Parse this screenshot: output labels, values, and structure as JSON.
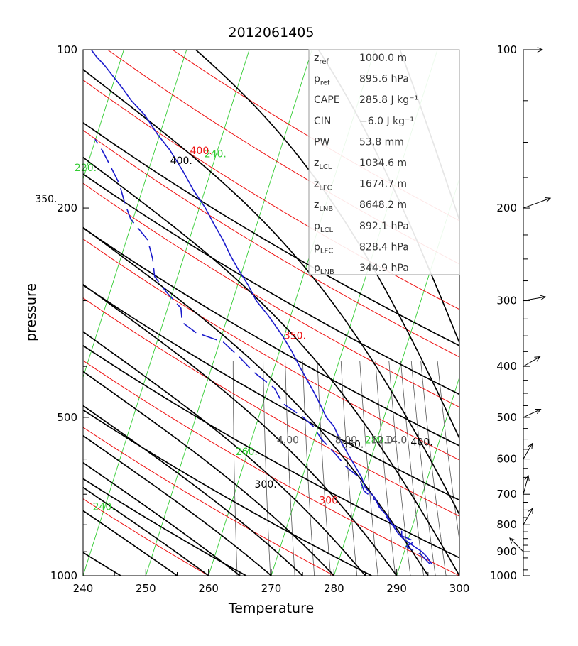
{
  "chart_data": {
    "type": "skew-t",
    "title": "2012061405",
    "xlabel": "Temperature",
    "ylabel": "pressure",
    "xlim": [
      240,
      300
    ],
    "ylim": [
      1000,
      100
    ],
    "x_ticks": [
      "240",
      "250",
      "260",
      "270",
      "280",
      "290",
      "300"
    ],
    "y_ticks": [
      {
        "p": 100,
        "label": "100"
      },
      {
        "p": 200,
        "label": "200"
      },
      {
        "p": 500,
        "label": "500"
      },
      {
        "p": 1000,
        "label": "1000"
      }
    ],
    "isotherm_labels": [
      {
        "t": 240,
        "p": 750,
        "label": "240."
      },
      {
        "t": 260,
        "p": 590,
        "label": "260."
      },
      {
        "t": 280,
        "p": 560,
        "label": "280."
      },
      {
        "t": 220,
        "p": 170,
        "label": "220."
      },
      {
        "t": 240,
        "p": 160,
        "label": "240."
      }
    ],
    "dry_adiabats": [
      240,
      260,
      280,
      300,
      320,
      340,
      360,
      380,
      400,
      420,
      440
    ],
    "dry_adiabat_labels": [
      {
        "theta": 300,
        "p": 680,
        "label": "300."
      },
      {
        "theta": 350,
        "p": 195,
        "label": "350."
      },
      {
        "theta": 400,
        "p": 165,
        "label": "400."
      }
    ],
    "theta_e_labels": [
      {
        "theta": 300,
        "p": 730,
        "label": "300."
      },
      {
        "theta": 350,
        "p": 355,
        "label": "350."
      },
      {
        "theta": 400,
        "p": 158,
        "label": "400."
      }
    ],
    "moist_adiabat_labels": [
      {
        "theta": 350,
        "p": 545,
        "label": "350."
      },
      {
        "theta": 400,
        "p": 540,
        "label": "400."
      }
    ],
    "mixing_ratio_labels": [
      {
        "w": 4,
        "label": "4.00"
      },
      {
        "w": 8,
        "label": "8.00"
      },
      {
        "w": 12,
        "label": "12.0"
      },
      {
        "w": 14,
        "label": "14.0"
      }
    ],
    "temperature_profile": [
      [
        295.6,
        950
      ],
      [
        294.8,
        920
      ],
      [
        294.0,
        900
      ],
      [
        292.8,
        880
      ],
      [
        291.0,
        850
      ],
      [
        290.2,
        830
      ],
      [
        289.3,
        800
      ],
      [
        288.5,
        770
      ],
      [
        287.2,
        740
      ],
      [
        286.5,
        710
      ],
      [
        285.0,
        680
      ],
      [
        284.4,
        650
      ],
      [
        283.4,
        620
      ],
      [
        282.7,
        600
      ],
      [
        281.6,
        570
      ],
      [
        280.9,
        550
      ],
      [
        280.0,
        520
      ],
      [
        278.8,
        500
      ],
      [
        277.7,
        470
      ],
      [
        276.9,
        450
      ],
      [
        275.5,
        420
      ],
      [
        274.5,
        400
      ],
      [
        273.3,
        375
      ],
      [
        271.8,
        350
      ],
      [
        269.5,
        320
      ],
      [
        267.6,
        300
      ],
      [
        266.3,
        280
      ],
      [
        264.6,
        260
      ],
      [
        263.4,
        245
      ],
      [
        262.3,
        230
      ],
      [
        260.9,
        215
      ],
      [
        259.5,
        200
      ],
      [
        257.6,
        185
      ],
      [
        255.9,
        170
      ],
      [
        253.8,
        155
      ],
      [
        251.9,
        145
      ],
      [
        249.8,
        133
      ],
      [
        247.7,
        125
      ],
      [
        246.2,
        118
      ],
      [
        244.7,
        112
      ],
      [
        243.4,
        107
      ],
      [
        242.1,
        103
      ],
      [
        241.3,
        100
      ]
    ],
    "dewpoint_profile": [
      [
        295.3,
        950
      ],
      [
        293.8,
        910
      ],
      [
        291.5,
        880
      ],
      [
        292.9,
        860
      ],
      [
        290.8,
        840
      ],
      [
        290.8,
        820
      ],
      [
        289.3,
        800
      ],
      [
        287.9,
        760
      ],
      [
        286.7,
        720
      ],
      [
        284.8,
        690
      ],
      [
        284.0,
        650
      ],
      [
        281.9,
        620
      ],
      [
        280.4,
        590
      ],
      [
        278.0,
        550
      ],
      [
        276.7,
        520
      ],
      [
        275.1,
        500
      ],
      [
        271.8,
        470
      ],
      [
        270.5,
        440
      ],
      [
        267.2,
        410
      ],
      [
        265.0,
        385
      ],
      [
        262.4,
        360
      ],
      [
        258.0,
        345
      ],
      [
        255.8,
        330
      ],
      [
        255.6,
        310
      ],
      [
        253.4,
        290
      ],
      [
        251.4,
        270
      ],
      [
        251.1,
        250
      ],
      [
        250.3,
        230
      ],
      [
        247.6,
        210
      ],
      [
        246.6,
        195
      ],
      [
        245.8,
        180
      ],
      [
        244.2,
        165
      ],
      [
        243.0,
        155
      ],
      [
        241.9,
        148
      ]
    ],
    "wind_barbs": [
      {
        "p": 100,
        "label": "100",
        "dir": 270,
        "speed": 10
      },
      {
        "p": 200,
        "label": "200",
        "dir": 250,
        "speed": 25
      },
      {
        "p": 300,
        "label": "300",
        "dir": 260,
        "speed": 15
      },
      {
        "p": 400,
        "label": "400",
        "dir": 240,
        "speed": 10
      },
      {
        "p": 500,
        "label": "500",
        "dir": 245,
        "speed": 10
      },
      {
        "p": 600,
        "label": "600",
        "dir": 210,
        "speed": 8
      },
      {
        "p": 700,
        "label": "700",
        "dir": 195,
        "speed": 10
      },
      {
        "p": 800,
        "label": "800",
        "dir": 210,
        "speed": 10
      },
      {
        "p": 900,
        "label": "900",
        "dir": 135,
        "speed": 10
      },
      {
        "p": 1000,
        "label": "1000",
        "dir": 0,
        "speed": 0
      }
    ],
    "info_box": [
      {
        "symbol": "z",
        "sub": "ref",
        "value": "1000.0 m"
      },
      {
        "symbol": "p",
        "sub": "ref",
        "value": "895.6 hPa"
      },
      {
        "symbol": "CAPE",
        "sub": "",
        "value": "285.8 J kg⁻¹"
      },
      {
        "symbol": "CIN",
        "sub": "",
        "value": "−6.0 J kg⁻¹"
      },
      {
        "symbol": "PW",
        "sub": "",
        "value": "53.8 mm"
      },
      {
        "symbol": "z",
        "sub": "LCL",
        "value": "1034.6 m"
      },
      {
        "symbol": "z",
        "sub": "LFC",
        "value": "1674.7 m"
      },
      {
        "symbol": "z",
        "sub": "LNB",
        "value": "8648.2 m"
      },
      {
        "symbol": "p",
        "sub": "LCL",
        "value": "892.1 hPa"
      },
      {
        "symbol": "p",
        "sub": "LFC",
        "value": "828.4 hPa"
      },
      {
        "symbol": "p",
        "sub": "LNB",
        "value": "344.9 hPa"
      }
    ],
    "colors": {
      "isotherm": "#33cc33",
      "dry_adiabat": "#ee1111",
      "moist_adiabat": "#000000",
      "mixing_ratio": "#555555",
      "profile": "#1a1acc",
      "info_text": "#333333"
    }
  }
}
